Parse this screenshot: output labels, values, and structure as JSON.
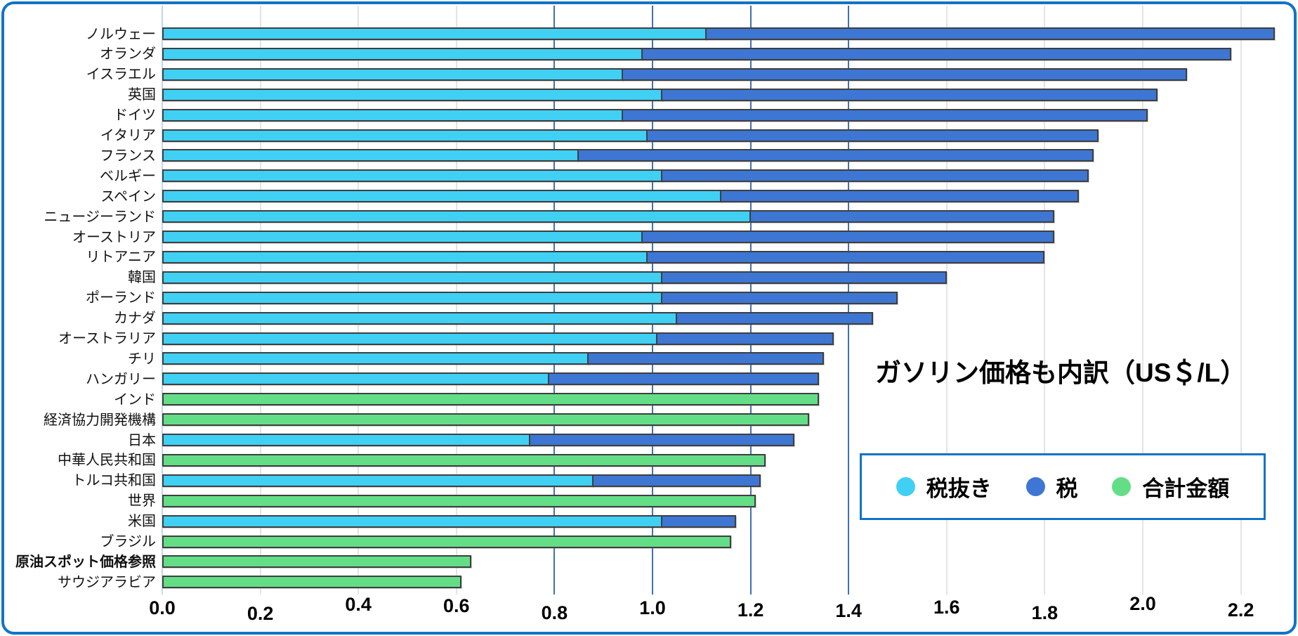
{
  "title": "ガソリン価格も内訳（US＄/L）",
  "legend": {
    "items": [
      {
        "label": "税抜き",
        "color": "#3fd0f4"
      },
      {
        "label": "税",
        "color": "#3d76d3"
      },
      {
        "label": "合計金額",
        "color": "#63de86"
      }
    ]
  },
  "colors": {
    "pretax": "#3fd0f4",
    "tax": "#3d76d3",
    "total_only": "#63de86",
    "bar_border": "#3f3f3f",
    "grid_light": "#e4e4e4",
    "grid_blue": "#3f6fb5",
    "frame_blue": "#1273c6"
  },
  "chart_data": {
    "type": "bar",
    "orientation": "horizontal",
    "stacked": true,
    "title": "ガソリン価格も内訳（US＄/L）",
    "unit": "US$/L",
    "xlabel": "",
    "ylabel": "",
    "xlim": [
      0.0,
      2.3
    ],
    "x_ticks": [
      0.0,
      0.2,
      0.4,
      0.6,
      0.8,
      1.0,
      1.2,
      1.4,
      1.6,
      1.8,
      2.0,
      2.2
    ],
    "blue_gridline_ticks": [
      0.8,
      1.0,
      1.2,
      1.4
    ],
    "grid": true,
    "legend_position": "right-bottom",
    "series_names": [
      "税抜き",
      "税",
      "合計金額"
    ],
    "rows": [
      {
        "label": "ノルウェー",
        "type": "stacked",
        "pre_tax": 1.11,
        "tax": 1.16,
        "total": 2.27
      },
      {
        "label": "オランダ",
        "type": "stacked",
        "pre_tax": 0.98,
        "tax": 1.2,
        "total": 2.18
      },
      {
        "label": "イスラエル",
        "type": "stacked",
        "pre_tax": 0.94,
        "tax": 1.15,
        "total": 2.09
      },
      {
        "label": "英国",
        "type": "stacked",
        "pre_tax": 1.02,
        "tax": 1.01,
        "total": 2.03
      },
      {
        "label": "ドイツ",
        "type": "stacked",
        "pre_tax": 0.94,
        "tax": 1.07,
        "total": 2.01
      },
      {
        "label": "イタリア",
        "type": "stacked",
        "pre_tax": 0.99,
        "tax": 0.92,
        "total": 1.91
      },
      {
        "label": "フランス",
        "type": "stacked",
        "pre_tax": 0.85,
        "tax": 1.05,
        "total": 1.9
      },
      {
        "label": "ベルギー",
        "type": "stacked",
        "pre_tax": 1.02,
        "tax": 0.87,
        "total": 1.89
      },
      {
        "label": "スペイン",
        "type": "stacked",
        "pre_tax": 1.14,
        "tax": 0.73,
        "total": 1.87
      },
      {
        "label": "ニュージーランド",
        "type": "stacked",
        "pre_tax": 1.2,
        "tax": 0.62,
        "total": 1.82
      },
      {
        "label": "オーストリア",
        "type": "stacked",
        "pre_tax": 0.98,
        "tax": 0.84,
        "total": 1.82
      },
      {
        "label": "リトアニア",
        "type": "stacked",
        "pre_tax": 0.99,
        "tax": 0.81,
        "total": 1.8
      },
      {
        "label": "韓国",
        "type": "stacked",
        "pre_tax": 1.02,
        "tax": 0.58,
        "total": 1.6
      },
      {
        "label": "ポーランド",
        "type": "stacked",
        "pre_tax": 1.02,
        "tax": 0.48,
        "total": 1.5
      },
      {
        "label": "カナダ",
        "type": "stacked",
        "pre_tax": 1.05,
        "tax": 0.4,
        "total": 1.45
      },
      {
        "label": "オーストラリア",
        "type": "stacked",
        "pre_tax": 1.01,
        "tax": 0.36,
        "total": 1.37
      },
      {
        "label": "チリ",
        "type": "stacked",
        "pre_tax": 0.87,
        "tax": 0.48,
        "total": 1.35
      },
      {
        "label": "ハンガリー",
        "type": "stacked",
        "pre_tax": 0.79,
        "tax": 0.55,
        "total": 1.34
      },
      {
        "label": "インド",
        "type": "total",
        "total": 1.34
      },
      {
        "label": "経済協力開発機構",
        "type": "total",
        "total": 1.32
      },
      {
        "label": "日本",
        "type": "stacked",
        "pre_tax": 0.75,
        "tax": 0.54,
        "total": 1.29
      },
      {
        "label": "中華人民共和国",
        "type": "total",
        "total": 1.23
      },
      {
        "label": "トルコ共和国",
        "type": "stacked",
        "pre_tax": 0.88,
        "tax": 0.34,
        "total": 1.22
      },
      {
        "label": "世界",
        "type": "total",
        "total": 1.21
      },
      {
        "label": "米国",
        "type": "stacked",
        "pre_tax": 1.02,
        "tax": 0.15,
        "total": 1.17
      },
      {
        "label": "ブラジル",
        "type": "total",
        "total": 1.16
      },
      {
        "label": "原油スポット価格参照",
        "type": "total",
        "total": 0.63,
        "bold_label": true
      },
      {
        "label": "サウジアラビア",
        "type": "total",
        "total": 0.61
      }
    ]
  }
}
